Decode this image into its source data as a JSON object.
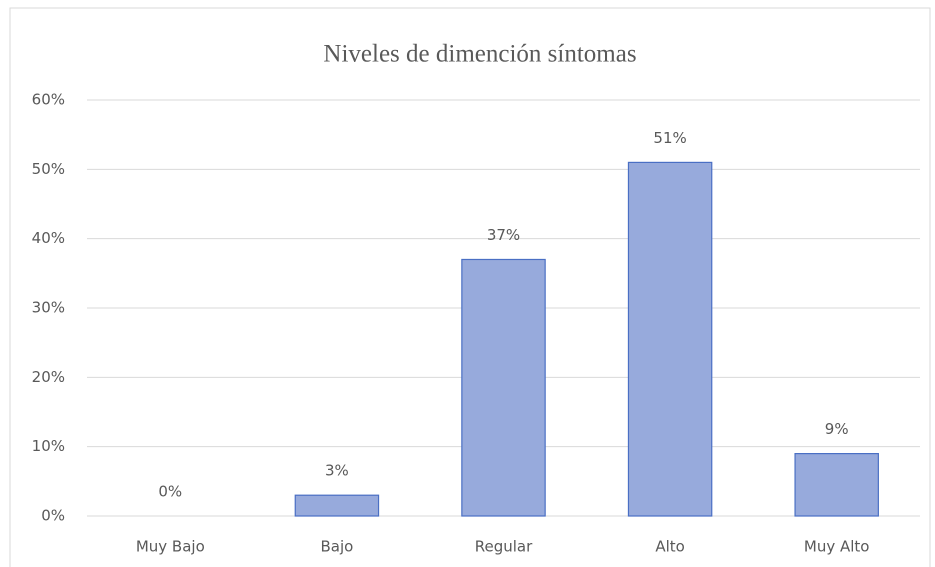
{
  "chart_data": {
    "type": "bar",
    "title": "Niveles de dimención síntomas",
    "categories": [
      "Muy Bajo",
      "Bajo",
      "Regular",
      "Alto",
      "Muy Alto"
    ],
    "values": [
      0,
      3,
      37,
      51,
      9
    ],
    "value_labels": [
      "0%",
      "3%",
      "37%",
      "51%",
      "9%"
    ],
    "color": "#97aadc",
    "edge_color": "#4a6fc4",
    "ylim": [
      0,
      60
    ],
    "yticks": [
      {
        "value": 0,
        "label": "0%"
      },
      {
        "value": 10,
        "label": "10%"
      },
      {
        "value": 20,
        "label": "20%"
      },
      {
        "value": 30,
        "label": "30%"
      },
      {
        "value": 40,
        "label": "40%"
      },
      {
        "value": 50,
        "label": "50%"
      },
      {
        "value": 60,
        "label": "60%"
      }
    ],
    "grid": true
  }
}
